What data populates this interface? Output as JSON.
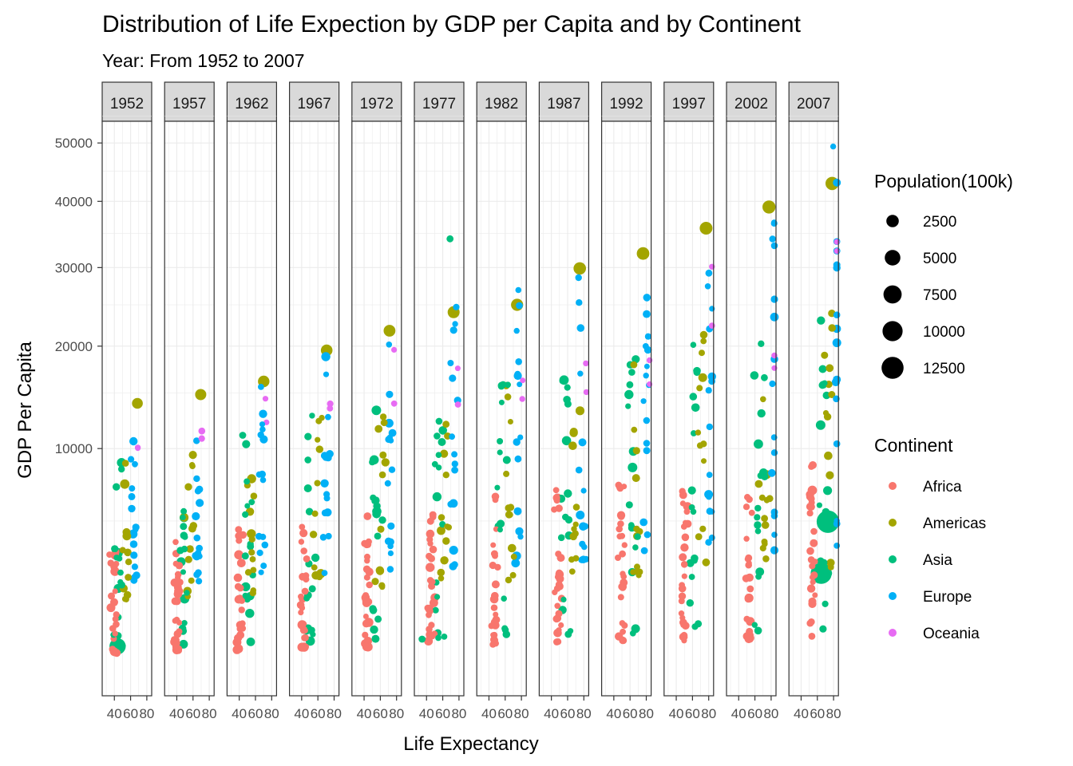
{
  "chart_data": {
    "type": "scatter",
    "title": "Distribution of Life Expection by GDP per Capita and by Continent",
    "subtitle": "Year: From 1952 to 2007",
    "xlabel": "Life Expectancy",
    "ylabel": "GDP Per Capita",
    "x_scale": "linear",
    "y_scale": "sqrt",
    "xlim": [
      25,
      86
    ],
    "ylim": [
      0,
      54000
    ],
    "x_ticks": [
      40,
      60,
      80
    ],
    "y_ticks": [
      10000,
      20000,
      30000,
      40000,
      50000
    ],
    "facets": [
      "1952",
      "1957",
      "1962",
      "1967",
      "1972",
      "1977",
      "1982",
      "1987",
      "1992",
      "1997",
      "2002",
      "2007"
    ],
    "grid": true,
    "legend_position": "right",
    "size_legend": {
      "title": "Population(100k)",
      "values": [
        2500,
        5000,
        7500,
        10000,
        12500
      ]
    },
    "color_legend": {
      "title": "Continent",
      "entries": [
        {
          "name": "Africa",
          "color": "#F8766D"
        },
        {
          "name": "Americas",
          "color": "#A3A500"
        },
        {
          "name": "Asia",
          "color": "#00BF7D"
        },
        {
          "name": "Europe",
          "color": "#00B0F6"
        },
        {
          "name": "Oceania",
          "color": "#E76BF3"
        }
      ]
    },
    "highlighted_points": [
      {
        "facet": "1952",
        "continent": "Americas",
        "x": 68.4,
        "y": 13990,
        "pop": 1576
      },
      {
        "facet": "1957",
        "continent": "Americas",
        "x": 69.5,
        "y": 14847,
        "pop": 1715
      },
      {
        "facet": "1962",
        "continent": "Americas",
        "x": 70.2,
        "y": 16173,
        "pop": 1866
      },
      {
        "facet": "1967",
        "continent": "Americas",
        "x": 70.8,
        "y": 19530,
        "pop": 1987
      },
      {
        "facet": "1972",
        "continent": "Americas",
        "x": 71.3,
        "y": 21806,
        "pop": 2099
      },
      {
        "facet": "1977",
        "continent": "Americas",
        "x": 73.4,
        "y": 24073,
        "pop": 2202
      },
      {
        "facet": "1982",
        "continent": "Americas",
        "x": 74.7,
        "y": 25010,
        "pop": 2322
      },
      {
        "facet": "1987",
        "continent": "Americas",
        "x": 75.0,
        "y": 29884,
        "pop": 2426
      },
      {
        "facet": "1992",
        "continent": "Americas",
        "x": 76.1,
        "y": 32004,
        "pop": 2562
      },
      {
        "facet": "1997",
        "continent": "Americas",
        "x": 76.8,
        "y": 35767,
        "pop": 2722
      },
      {
        "facet": "2002",
        "continent": "Americas",
        "x": 77.3,
        "y": 39097,
        "pop": 2876
      },
      {
        "facet": "2007",
        "continent": "Americas",
        "x": 78.2,
        "y": 42952,
        "pop": 3011
      },
      {
        "facet": "1952",
        "continent": "Asia",
        "x": 44.0,
        "y": 400,
        "pop": 5563
      },
      {
        "facet": "2007",
        "continent": "Asia",
        "x": 73.0,
        "y": 4959,
        "pop": 13190
      },
      {
        "facet": "2007",
        "continent": "Asia",
        "x": 64.7,
        "y": 2452,
        "pop": 11100
      },
      {
        "facet": "1977",
        "continent": "Asia",
        "x": 34.5,
        "y": 525,
        "pop": 200
      },
      {
        "facet": "1977",
        "continent": "Asia",
        "x": 69.0,
        "y": 34167,
        "pop": 200
      },
      {
        "facet": "2007",
        "continent": "Europe",
        "x": 79.5,
        "y": 49357,
        "pop": 46
      }
    ]
  }
}
